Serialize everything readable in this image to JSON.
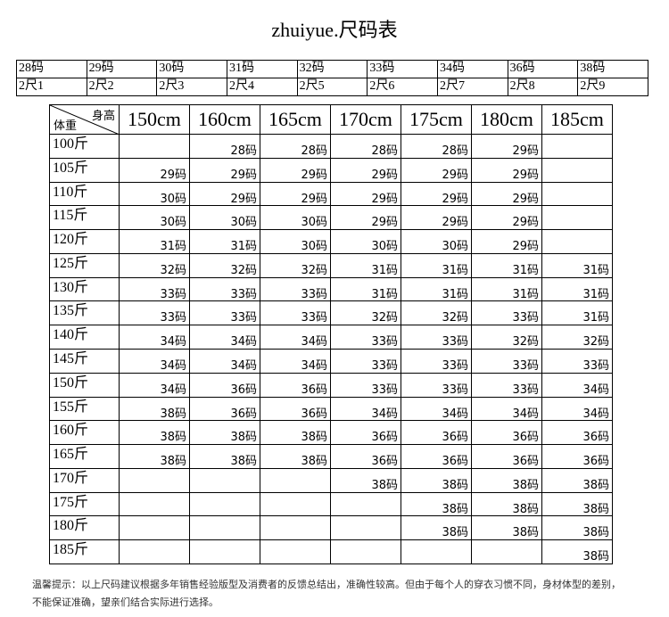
{
  "title": "zhuiyue.尺码表",
  "size_table": {
    "rows": [
      [
        "28码",
        "29码",
        "30码",
        "31码",
        "32码",
        "33码",
        "34码",
        "36码",
        "38码"
      ],
      [
        "2尺1",
        "2尺2",
        "2尺3",
        "2尺4",
        "2尺5",
        "2尺6",
        "2尺7",
        "2尺8",
        "2尺9"
      ]
    ]
  },
  "main_table": {
    "corner": {
      "height": "身高",
      "weight": "体重"
    },
    "columns": [
      "150cm",
      "160cm",
      "165cm",
      "170cm",
      "175cm",
      "180cm",
      "185cm"
    ],
    "rows": [
      {
        "weight": "100斤",
        "cells": [
          null,
          "28码",
          "28码",
          "28码",
          "28码",
          "29码",
          null
        ]
      },
      {
        "weight": "105斤",
        "cells": [
          "29码",
          "29码",
          "29码",
          "29码",
          "29码",
          "29码",
          null
        ]
      },
      {
        "weight": "110斤",
        "cells": [
          "30码",
          "29码",
          "29码",
          "29码",
          "29码",
          "29码",
          null
        ]
      },
      {
        "weight": "115斤",
        "cells": [
          "30码",
          "30码",
          "30码",
          "29码",
          "29码",
          "29码",
          null
        ]
      },
      {
        "weight": "120斤",
        "cells": [
          "31码",
          "31码",
          "30码",
          "30码",
          "30码",
          "29码",
          null
        ]
      },
      {
        "weight": "125斤",
        "cells": [
          "32码",
          "32码",
          "32码",
          "31码",
          "31码",
          "31码",
          "31码"
        ]
      },
      {
        "weight": "130斤",
        "cells": [
          "33码",
          "33码",
          "33码",
          "31码",
          "31码",
          "31码",
          "31码"
        ]
      },
      {
        "weight": "135斤",
        "cells": [
          "33码",
          "33码",
          "33码",
          "32码",
          "32码",
          "33码",
          "31码"
        ]
      },
      {
        "weight": "140斤",
        "cells": [
          "34码",
          "34码",
          "34码",
          "33码",
          "33码",
          "32码",
          "32码"
        ]
      },
      {
        "weight": "145斤",
        "cells": [
          "34码",
          "34码",
          "34码",
          "33码",
          "33码",
          "33码",
          "33码"
        ]
      },
      {
        "weight": "150斤",
        "cells": [
          "34码",
          "36码",
          "36码",
          "33码",
          "33码",
          "33码",
          "34码"
        ]
      },
      {
        "weight": "155斤",
        "cells": [
          "38码",
          "36码",
          "36码",
          "34码",
          "34码",
          "34码",
          "34码"
        ]
      },
      {
        "weight": "160斤",
        "cells": [
          "38码",
          "38码",
          "38码",
          "36码",
          "36码",
          "36码",
          "36码"
        ]
      },
      {
        "weight": "165斤",
        "cells": [
          "38码",
          "38码",
          "38码",
          "36码",
          "36码",
          "36码",
          "36码"
        ]
      },
      {
        "weight": "170斤",
        "cells": [
          null,
          null,
          null,
          "38码",
          "38码",
          "38码",
          "38码"
        ]
      },
      {
        "weight": "175斤",
        "cells": [
          null,
          null,
          null,
          null,
          "38码",
          "38码",
          "38码"
        ]
      },
      {
        "weight": "180斤",
        "cells": [
          null,
          null,
          null,
          null,
          "38码",
          "38码",
          "38码"
        ]
      },
      {
        "weight": "185斤",
        "cells": [
          null,
          null,
          null,
          null,
          null,
          null,
          "38码"
        ]
      }
    ]
  },
  "notes": [
    "温馨提示：以上尺码建议根据多年销售经验版型及消费者的反馈总结出，准确性较高。但由于每个人的穿衣习惯不同，身材体型的差别，",
    "不能保证准确，望亲们结合实际进行选择。"
  ]
}
